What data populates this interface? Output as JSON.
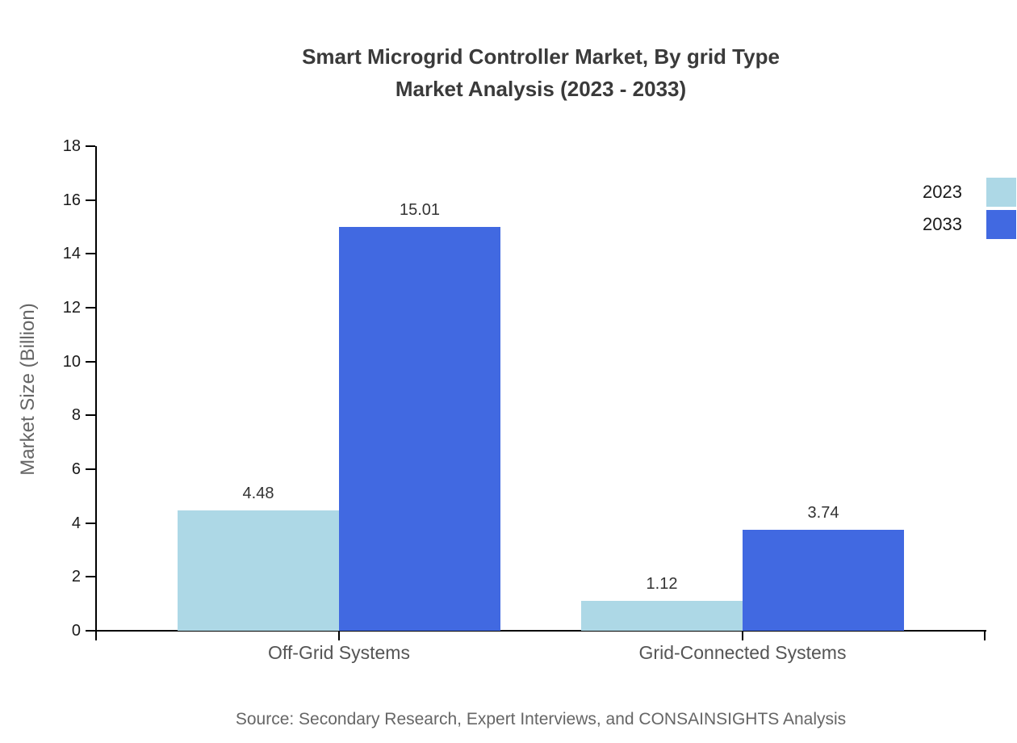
{
  "title": {
    "line1": "Smart Microgrid Controller Market, By grid Type",
    "line2": "Market Analysis (2023 - 2033)"
  },
  "source_note": "Source: Secondary Research, Expert Interviews, and CONSAINSIGHTS Analysis",
  "chart_data": {
    "type": "bar",
    "title": "Smart Microgrid Controller Market, By grid Type Market Analysis (2023 - 2033)",
    "categories": [
      "Off-Grid Systems",
      "Grid-Connected Systems"
    ],
    "series": [
      {
        "name": "2023",
        "color": "#ADD8E6",
        "values": [
          4.48,
          1.12
        ]
      },
      {
        "name": "2033",
        "color": "#4169E1",
        "values": [
          15.01,
          3.74
        ]
      }
    ],
    "value_labels": [
      "4.48",
      "15.01",
      "1.12",
      "3.74"
    ],
    "xlabel": "",
    "ylabel": "Market Size (Billion)",
    "ylim": [
      0,
      18
    ],
    "ytick_step": 2,
    "yticks": [
      0,
      2,
      4,
      6,
      8,
      10,
      12,
      14,
      16,
      18
    ],
    "grid": false,
    "legend_position": "right-edge",
    "bar_value_labels_shown": true
  },
  "colors": {
    "axis": "#000000",
    "title_text": "#3a3a3a",
    "tick_label_text": "#1a1a1a",
    "category_label_text": "#555555",
    "axis_title_text": "#666666",
    "value_label_text": "#333333",
    "source_text": "#666666",
    "series_2023": "#ADD8E6",
    "series_2033": "#4169E1",
    "background": "#ffffff"
  }
}
